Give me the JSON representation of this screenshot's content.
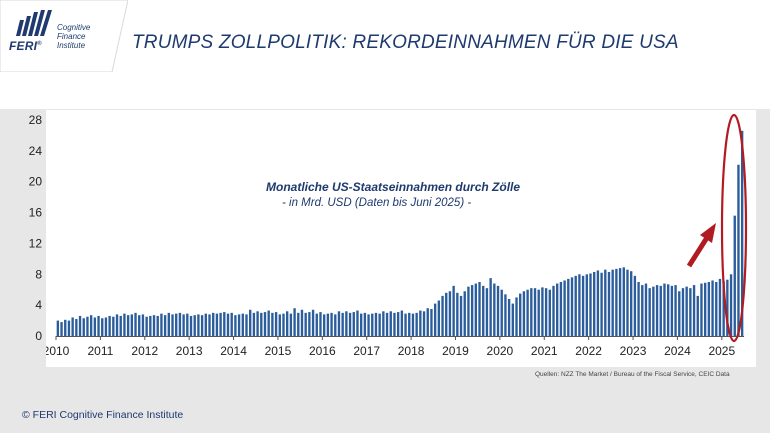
{
  "header": {
    "logo_mark": "FERI",
    "logo_registered": "®",
    "logo_lines": [
      "Cognitive",
      "Finance",
      "Institute"
    ],
    "title": "TRUMPS ZOLLPOLITIK: REKORDEINNAHMEN FÜR DIE USA"
  },
  "chart_annotation": {
    "title": "Monatliche US-Staatseinnahmen durch Zölle",
    "subtitle": "- in Mrd. USD (Daten bis Juni 2025) -"
  },
  "source": "Quellen: NZZ The Market / Bureau of the Fiscal Service, CEIC Data",
  "footer": "© FERI Cognitive Finance Institute",
  "colors": {
    "bar": "#2b5d9c",
    "title": "#1e3a6e",
    "highlight": "#b01c22"
  },
  "chart_data": {
    "type": "bar",
    "title": "Monatliche US-Staatseinnahmen durch Zölle",
    "subtitle": "- in Mrd. USD (Daten bis Juni 2025) -",
    "ylabel": "",
    "xlabel": "",
    "ylim": [
      0,
      28
    ],
    "yticks": [
      0,
      4,
      8,
      12,
      16,
      20,
      24,
      28
    ],
    "year_labels": [
      "2010",
      "2011",
      "2012",
      "2013",
      "2014",
      "2015",
      "2016",
      "2017",
      "2018",
      "2019",
      "2020",
      "2021",
      "2022",
      "2023",
      "2024",
      "2025"
    ],
    "grid": false,
    "legend": "none",
    "start": "2010-01",
    "end": "2025-06",
    "values": [
      2.0,
      1.8,
      2.1,
      2.0,
      2.4,
      2.2,
      2.6,
      2.3,
      2.5,
      2.7,
      2.4,
      2.6,
      2.3,
      2.4,
      2.6,
      2.5,
      2.8,
      2.6,
      2.9,
      2.7,
      2.8,
      3.0,
      2.7,
      2.8,
      2.5,
      2.6,
      2.7,
      2.6,
      2.9,
      2.7,
      3.0,
      2.8,
      2.9,
      3.0,
      2.8,
      2.9,
      2.6,
      2.7,
      2.8,
      2.7,
      2.9,
      2.8,
      3.0,
      2.9,
      3.0,
      3.1,
      2.9,
      3.0,
      2.7,
      2.8,
      2.9,
      2.8,
      3.4,
      3.0,
      3.2,
      3.0,
      3.1,
      3.3,
      3.0,
      3.1,
      2.8,
      2.9,
      3.2,
      2.9,
      3.6,
      3.0,
      3.4,
      3.0,
      3.1,
      3.4,
      2.9,
      3.1,
      2.8,
      2.9,
      3.0,
      2.8,
      3.2,
      3.0,
      3.2,
      3.0,
      3.1,
      3.3,
      2.9,
      3.0,
      2.8,
      2.9,
      3.0,
      2.9,
      3.2,
      3.0,
      3.2,
      3.0,
      3.1,
      3.3,
      2.9,
      3.0,
      2.9,
      3.0,
      3.3,
      3.2,
      3.6,
      3.5,
      4.2,
      4.6,
      5.2,
      5.6,
      5.8,
      6.5,
      5.6,
      5.2,
      5.8,
      6.4,
      6.6,
      6.8,
      7.0,
      6.5,
      6.2,
      7.5,
      6.8,
      6.5,
      6.0,
      5.4,
      4.8,
      4.2,
      5.0,
      5.5,
      5.8,
      6.0,
      6.2,
      6.2,
      6.0,
      6.3,
      6.2,
      6.0,
      6.5,
      6.8,
      7.0,
      7.2,
      7.4,
      7.6,
      7.8,
      8.0,
      7.8,
      8.0,
      8.1,
      8.3,
      8.5,
      8.2,
      8.6,
      8.3,
      8.6,
      8.7,
      8.8,
      8.9,
      8.6,
      8.4,
      7.8,
      7.0,
      6.6,
      6.8,
      6.2,
      6.4,
      6.6,
      6.5,
      6.8,
      6.7,
      6.5,
      6.6,
      5.8,
      6.2,
      6.4,
      6.2,
      6.6,
      5.2,
      6.8,
      6.9,
      7.0,
      7.2,
      7.0,
      7.4,
      7.1,
      7.3,
      8.0,
      15.6,
      22.2,
      26.6
    ]
  }
}
